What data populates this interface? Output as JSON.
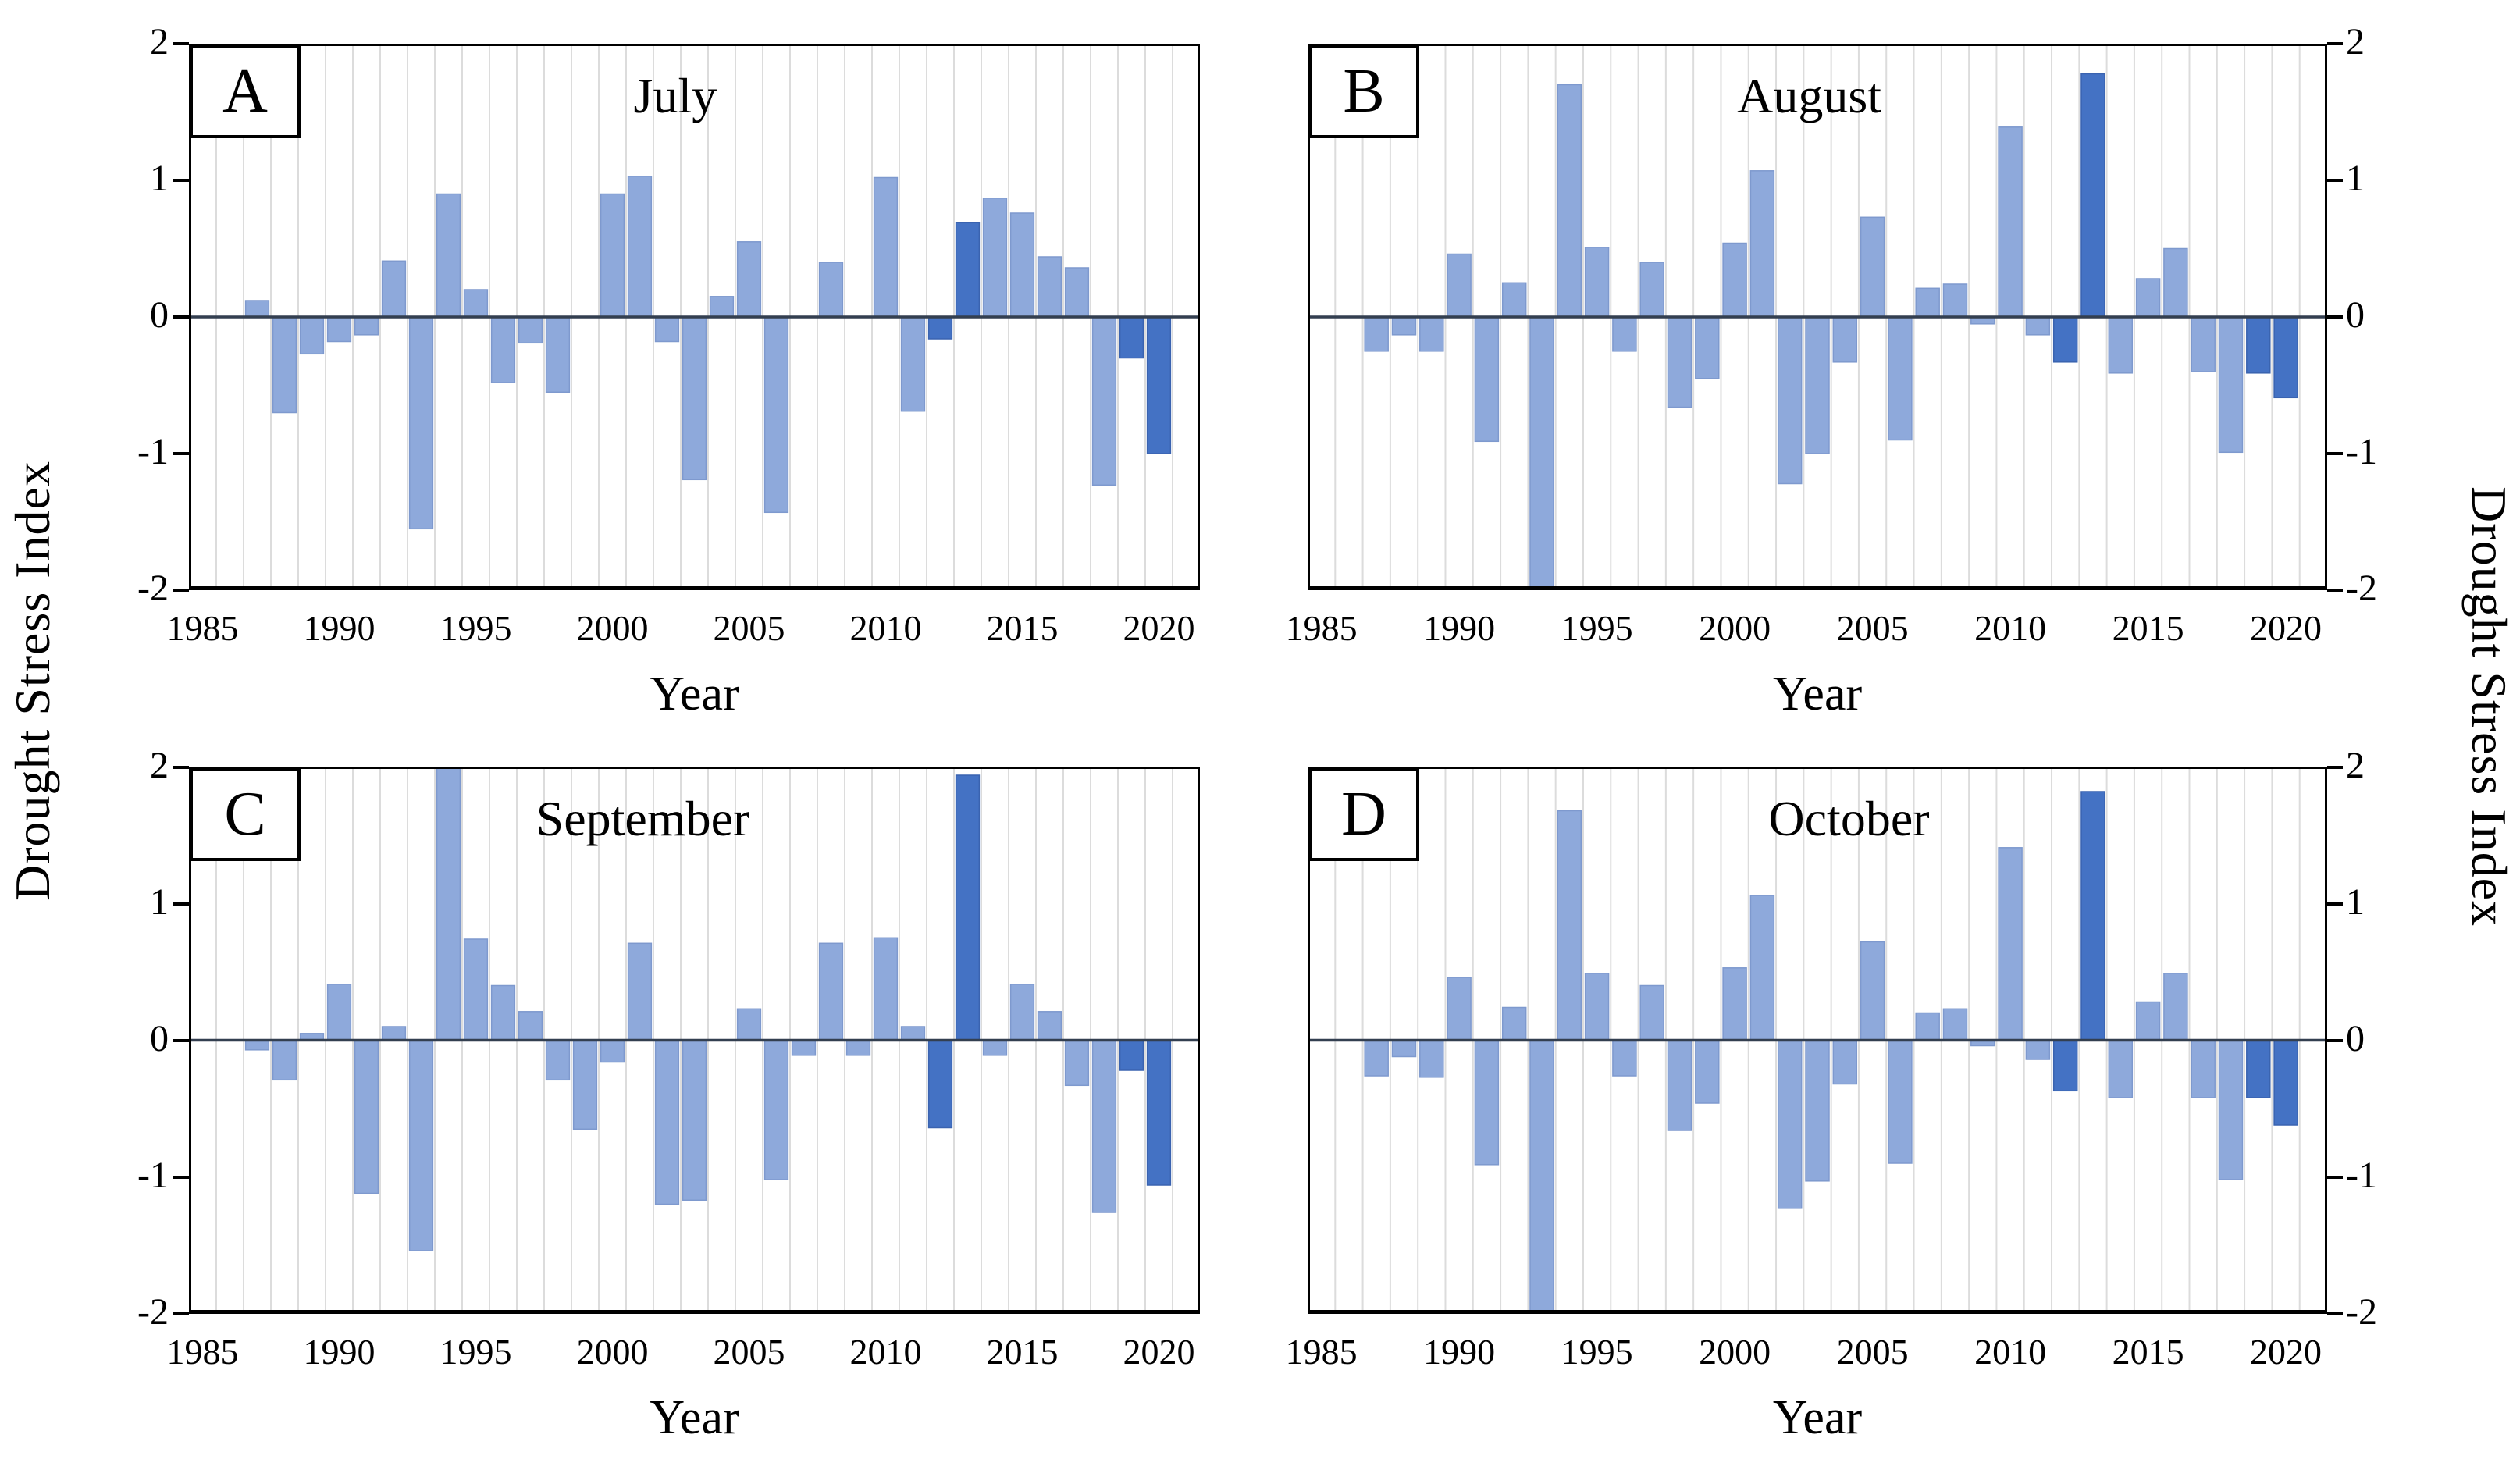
{
  "figure": {
    "left_axis_title": "Drought Stress Index",
    "right_axis_title": "Drought Stress Index",
    "x_axis_title": "Year",
    "y_tick_labels": [
      "2",
      "1",
      "0",
      "-1",
      "-2"
    ],
    "x_tick_labels": [
      "1985",
      "1990",
      "1995",
      "2000",
      "2005",
      "2010",
      "2015",
      "2020"
    ]
  },
  "colors": {
    "bar_light": "#8EA9DB",
    "bar_light_edge": "#7E99CE",
    "bar_dark": "#4472C4",
    "bar_dark_edge": "#3A63B0",
    "zero_line": "#333F50",
    "gridline": "#DCDCDC",
    "frame": "#000000",
    "background": "#FFFFFF"
  },
  "chart_data": [
    {
      "type": "bar",
      "panel_label": "A",
      "title": "July",
      "xlabel": "Year",
      "ylabel": "Drought Stress Index",
      "ylim": [
        -2,
        2
      ],
      "x_axis_span_years": [
        1985,
        2021
      ],
      "y_tick_values": [
        2,
        1,
        0,
        -1,
        -2
      ],
      "x_tick_years": [
        1985,
        1990,
        1995,
        2000,
        2005,
        2010,
        2015,
        2020
      ],
      "years": [
        1986,
        1987,
        1988,
        1989,
        1990,
        1991,
        1992,
        1993,
        1994,
        1995,
        1996,
        1997,
        1998,
        1999,
        2000,
        2001,
        2002,
        2003,
        2004,
        2005,
        2006,
        2007,
        2008,
        2009,
        2010,
        2011,
        2012,
        2013,
        2014,
        2015,
        2016,
        2017,
        2018,
        2019,
        2020
      ],
      "values": [
        0,
        0.12,
        -0.7,
        -0.27,
        -0.18,
        -0.13,
        0.41,
        -1.55,
        0.9,
        0.2,
        -0.48,
        -0.19,
        -0.55,
        0,
        0.9,
        1.03,
        -0.18,
        -1.19,
        0.15,
        0.55,
        -1.43,
        0,
        0.4,
        0,
        1.02,
        -0.69,
        -0.16,
        0.69,
        0.87,
        0.76,
        0.44,
        0.36,
        -1.23,
        -0.3,
        -1.0
      ],
      "dark_years": [
        2012,
        2013,
        2019,
        2020
      ]
    },
    {
      "type": "bar",
      "panel_label": "B",
      "title": "August",
      "xlabel": "Year",
      "ylabel": "Drought Stress Index",
      "ylim": [
        -2,
        2
      ],
      "x_axis_span_years": [
        1985,
        2021
      ],
      "y_tick_values": [
        2,
        1,
        0,
        -1,
        -2
      ],
      "x_tick_years": [
        1985,
        1990,
        1995,
        2000,
        2005,
        2010,
        2015,
        2020
      ],
      "years": [
        1986,
        1987,
        1988,
        1989,
        1990,
        1991,
        1992,
        1993,
        1994,
        1995,
        1996,
        1997,
        1998,
        1999,
        2000,
        2001,
        2002,
        2003,
        2004,
        2005,
        2006,
        2007,
        2008,
        2009,
        2010,
        2011,
        2012,
        2013,
        2014,
        2015,
        2016,
        2017,
        2018,
        2019,
        2020
      ],
      "values": [
        0,
        -0.25,
        -0.13,
        -0.25,
        0.46,
        -0.91,
        0.25,
        -2.0,
        1.7,
        0.51,
        -0.25,
        0.4,
        -0.66,
        -0.45,
        0.54,
        1.07,
        -1.22,
        -1.0,
        -0.33,
        0.73,
        -0.9,
        0.21,
        0.24,
        -0.05,
        1.39,
        -0.13,
        -0.33,
        1.78,
        -0.41,
        0.28,
        0.5,
        -0.4,
        -0.99,
        -0.41,
        -0.59
      ],
      "dark_years": [
        2012,
        2013,
        2019,
        2020
      ]
    },
    {
      "type": "bar",
      "panel_label": "C",
      "title": "September",
      "xlabel": "Year",
      "ylabel": "Drought Stress Index",
      "ylim": [
        -2,
        2
      ],
      "x_axis_span_years": [
        1985,
        2021
      ],
      "y_tick_values": [
        2,
        1,
        0,
        -1,
        -2
      ],
      "x_tick_years": [
        1985,
        1990,
        1995,
        2000,
        2005,
        2010,
        2015,
        2020
      ],
      "years": [
        1986,
        1987,
        1988,
        1989,
        1990,
        1991,
        1992,
        1993,
        1994,
        1995,
        1996,
        1997,
        1998,
        1999,
        2000,
        2001,
        2002,
        2003,
        2004,
        2005,
        2006,
        2007,
        2008,
        2009,
        2010,
        2011,
        2012,
        2013,
        2014,
        2015,
        2016,
        2017,
        2018,
        2019,
        2020
      ],
      "values": [
        0,
        -0.07,
        -0.29,
        0.05,
        0.41,
        -1.12,
        0.1,
        -1.54,
        2.0,
        0.74,
        0.4,
        0.21,
        -0.29,
        -0.65,
        -0.16,
        0.71,
        -1.2,
        -1.17,
        0,
        0.23,
        -1.02,
        -0.11,
        0.71,
        -0.11,
        0.75,
        0.1,
        -0.64,
        1.94,
        -0.11,
        0.41,
        0.21,
        -0.33,
        -1.26,
        -0.22,
        -1.06
      ],
      "dark_years": [
        2012,
        2013,
        2019,
        2020
      ]
    },
    {
      "type": "bar",
      "panel_label": "D",
      "title": "October",
      "xlabel": "Year",
      "ylabel": "Drought Stress Index",
      "ylim": [
        -2,
        2
      ],
      "x_axis_span_years": [
        1985,
        2021
      ],
      "y_tick_values": [
        2,
        1,
        0,
        -1,
        -2
      ],
      "x_tick_years": [
        1985,
        1990,
        1995,
        2000,
        2005,
        2010,
        2015,
        2020
      ],
      "years": [
        1986,
        1987,
        1988,
        1989,
        1990,
        1991,
        1992,
        1993,
        1994,
        1995,
        1996,
        1997,
        1998,
        1999,
        2000,
        2001,
        2002,
        2003,
        2004,
        2005,
        2006,
        2007,
        2008,
        2009,
        2010,
        2011,
        2012,
        2013,
        2014,
        2015,
        2016,
        2017,
        2018,
        2019,
        2020
      ],
      "values": [
        0,
        -0.26,
        -0.12,
        -0.27,
        0.46,
        -0.91,
        0.24,
        -2.0,
        1.68,
        0.49,
        -0.26,
        0.4,
        -0.66,
        -0.46,
        0.53,
        1.06,
        -1.23,
        -1.03,
        -0.32,
        0.72,
        -0.9,
        0.2,
        0.23,
        -0.04,
        1.41,
        -0.14,
        -0.37,
        1.82,
        -0.42,
        0.28,
        0.49,
        -0.42,
        -1.02,
        -0.42,
        -0.62
      ],
      "dark_years": [
        2012,
        2013,
        2019,
        2020
      ]
    }
  ]
}
